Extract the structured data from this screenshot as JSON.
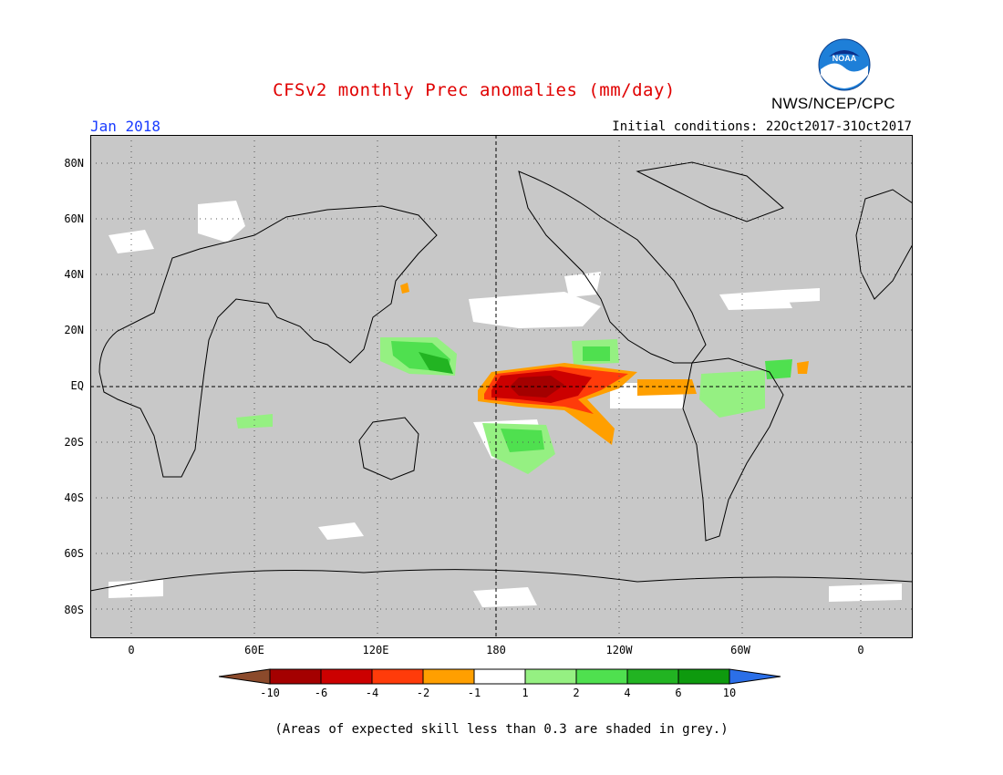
{
  "title": "CFSv2 monthly Prec anomalies (mm/day)",
  "agency": "NWS/NCEP/CPC",
  "logo_text": "NOAA",
  "month": "Jan 2018",
  "initial_conditions": "Initial conditions: 22Oct2017-31Oct2017",
  "footer": "(Areas of expected skill less than 0.3 are shaded in grey.)",
  "y_ticks": [
    "80N",
    "60N",
    "40N",
    "20N",
    "EQ",
    "20S",
    "40S",
    "60S",
    "80S"
  ],
  "x_ticks": [
    "0",
    "60E",
    "120E",
    "180",
    "120W",
    "60W",
    "0"
  ],
  "colorbar": {
    "labels": [
      "-10",
      "-6",
      "-4",
      "-2",
      "-1",
      "1",
      "2",
      "4",
      "6",
      "10"
    ],
    "colors": [
      "#8b4a2b",
      "#a40000",
      "#cc0000",
      "#ff3b0a",
      "#ff9f00",
      "#ffffff",
      "#95f082",
      "#4fe04f",
      "#22b422",
      "#0e9a0e",
      "#2b6fe8"
    ]
  },
  "colors": {
    "skill_mask_grey": "#c8c8c8",
    "title_red": "#e00000",
    "month_blue": "#1a3cff"
  }
}
